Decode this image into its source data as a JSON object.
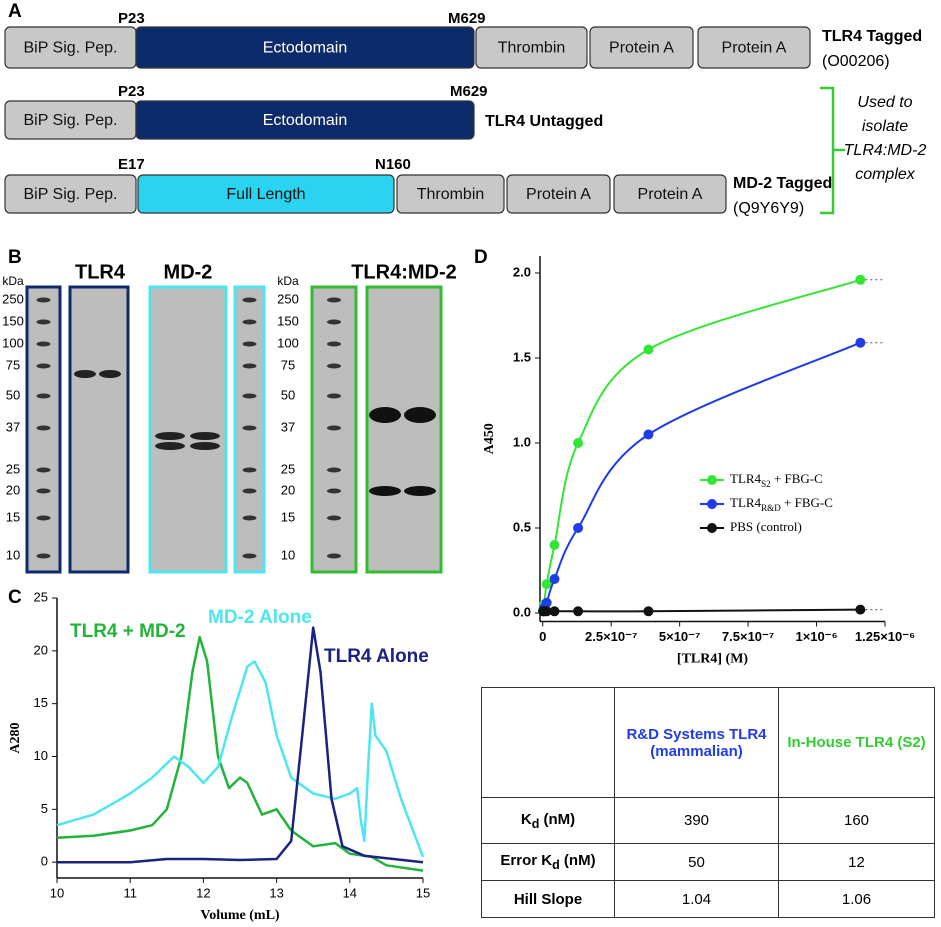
{
  "panel_labels": [
    "A",
    "B",
    "C",
    "D"
  ],
  "constructs": [
    {
      "domains": [
        "BiP Sig. Pep.",
        "Ectodomain",
        "Thrombin",
        "Protein A",
        "Protein A"
      ],
      "sites": [
        "P23",
        "M629"
      ],
      "name": "TLR4 Tagged",
      "accession": "(O00206)"
    },
    {
      "domains": [
        "BiP Sig. Pep.",
        "Ectodomain"
      ],
      "sites": [
        "P23",
        "M629"
      ],
      "name": "TLR4 Untagged"
    },
    {
      "domains": [
        "BiP Sig. Pep.",
        "Full Length",
        "Thrombin",
        "Protein A",
        "Protein A"
      ],
      "sites": [
        "E17",
        "N160"
      ],
      "name": "MD-2 Tagged",
      "accession": "(Q9Y6Y9)"
    }
  ],
  "bracket_note": [
    "Used to",
    "isolate",
    "TLR4:MD-2",
    "complex"
  ],
  "gels": {
    "titles": [
      "TLR4",
      "MD-2",
      "TLR4:MD-2"
    ],
    "unit": "kDa",
    "markers": [
      250,
      150,
      100,
      75,
      50,
      37,
      25,
      20,
      15,
      10
    ]
  },
  "chart_data": [
    {
      "type": "line",
      "xlabel": "Volume (mL)",
      "ylabel": "A280",
      "xlim": [
        10,
        15
      ],
      "xticks": [
        10,
        11,
        12,
        13,
        14,
        15
      ],
      "ylim": [
        -1.5,
        25
      ],
      "yticks": [
        0,
        5,
        10,
        15,
        20,
        25
      ],
      "series": [
        {
          "name": "TLR4 + MD-2",
          "color": "#22b33a",
          "x": [
            10,
            10.5,
            11,
            11.3,
            11.5,
            11.7,
            11.85,
            11.95,
            12.05,
            12.2,
            12.35,
            12.5,
            12.6,
            12.8,
            13,
            13.2,
            13.5,
            13.8,
            14,
            14.3,
            14.5,
            15
          ],
          "values": [
            2.3,
            2.5,
            3,
            3.5,
            5,
            10,
            18,
            21.3,
            19,
            10,
            7,
            8,
            7.5,
            4.5,
            5,
            3,
            1.5,
            1.8,
            0.8,
            0.5,
            -0.3,
            -0.8
          ]
        },
        {
          "name": "MD-2 Alone",
          "color": "#4de6f0",
          "x": [
            10,
            10.5,
            11,
            11.3,
            11.6,
            11.8,
            12,
            12.2,
            12.4,
            12.6,
            12.7,
            12.85,
            13,
            13.2,
            13.5,
            13.8,
            14,
            14.1,
            14.15,
            14.2,
            14.25,
            14.3,
            14.35,
            14.5,
            14.7,
            15
          ],
          "values": [
            3.5,
            4.5,
            6.5,
            8,
            10,
            9,
            7.5,
            9,
            14,
            18.5,
            19,
            17,
            12,
            8,
            6.5,
            6,
            6.5,
            7,
            4,
            2,
            9,
            15,
            12,
            10.5,
            6,
            0.5
          ]
        },
        {
          "name": "TLR4 Alone",
          "color": "#1a237e",
          "x": [
            10,
            11,
            11.5,
            12,
            12.5,
            13,
            13.2,
            13.35,
            13.5,
            13.6,
            13.75,
            13.9,
            14.2,
            15
          ],
          "values": [
            0,
            0,
            0.3,
            0.3,
            0.2,
            0.3,
            2,
            12,
            22.2,
            18,
            6,
            1.5,
            0.6,
            0
          ]
        }
      ]
    },
    {
      "type": "scatter",
      "xlabel": "[TLR4] (M)",
      "ylabel": "A450",
      "xlim": [
        -1e-08,
        1.25e-06
      ],
      "xticks": [
        0,
        {
          "value": 2.5e-07,
          "label": "2.5×10⁻⁷"
        },
        {
          "value": 5e-07,
          "label": "5×10⁻⁷"
        },
        {
          "value": 7.5e-07,
          "label": "7.5×10⁻⁷"
        },
        {
          "value": 1e-06,
          "label": "1×10⁻⁶"
        },
        {
          "value": 1.25e-06,
          "label": "1.25×10⁻⁶"
        }
      ],
      "ylim": [
        -0.05,
        2.1
      ],
      "yticks": [
        {
          "value": 0,
          "label": "0.0"
        },
        0.5,
        {
          "value": 1,
          "label": "1.0"
        },
        1.5,
        {
          "value": 2,
          "label": "2.0"
        }
      ],
      "x": [
        1.59e-09,
        4.76e-09,
        1.43e-08,
        4.29e-08,
        1.29e-07,
        3.86e-07,
        1.16e-06
      ],
      "series": [
        {
          "name": [
            "TLR4",
            "S2",
            " + FBG-C"
          ],
          "color": "#33e633",
          "values": [
            0.02,
            0.05,
            0.17,
            0.4,
            1.0,
            1.55,
            1.96
          ]
        },
        {
          "name": [
            "TLR4",
            "R&D",
            " + FBG-C"
          ],
          "color": "#1f3de6",
          "values": [
            0.01,
            0.03,
            0.06,
            0.2,
            0.5,
            1.05,
            1.59
          ]
        },
        {
          "name": [
            "PBS (control)"
          ],
          "color": "#111111",
          "values": [
            0.01,
            0.01,
            0.01,
            0.01,
            0.01,
            0.01,
            0.02
          ]
        }
      ]
    }
  ],
  "table": {
    "columns": [
      "R&D Systems TLR4 (mammalian)",
      "In-House TLR4 (S2)"
    ],
    "rows": [
      {
        "label": [
          "K",
          "d",
          " (nM)"
        ],
        "values": [
          390,
          160
        ]
      },
      {
        "label": [
          "Error K",
          "d",
          " (nM)"
        ],
        "values": [
          50,
          12
        ]
      },
      {
        "label": [
          "Hill Slope"
        ],
        "values": [
          1.04,
          1.06
        ]
      }
    ]
  }
}
